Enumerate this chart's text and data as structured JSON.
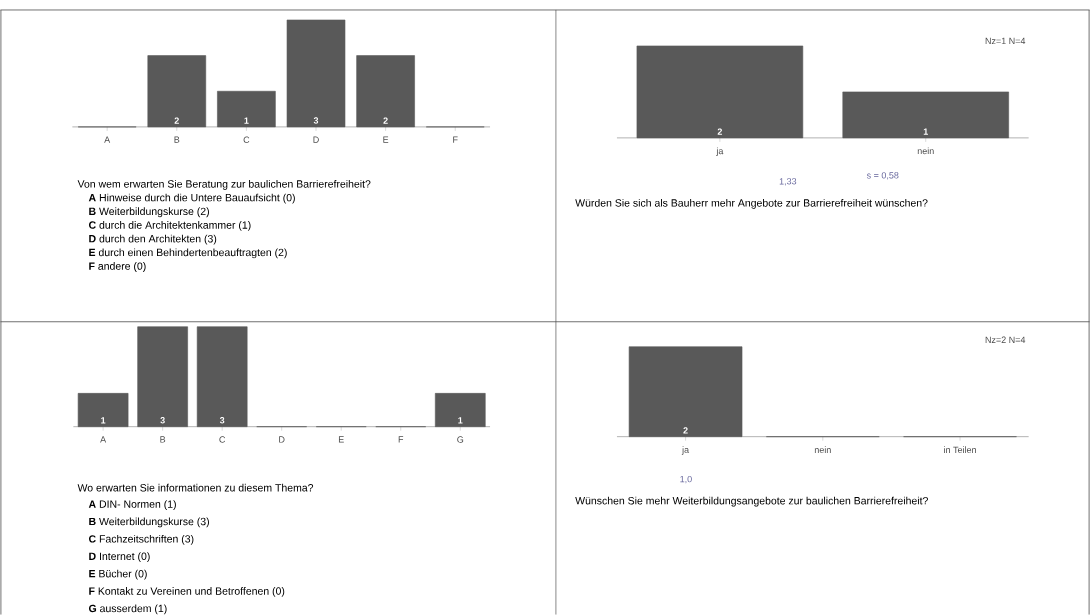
{
  "chart_data": [
    {
      "type": "bar",
      "title": "Von wem erwarten Sie Beratung zur baulichen Barrierefreiheit?",
      "categories": [
        "A",
        "B",
        "C",
        "D",
        "E",
        "F"
      ],
      "values": [
        0,
        2,
        1,
        3,
        2,
        0
      ],
      "value_labels": [
        null,
        "2",
        "1",
        "3",
        "2",
        null
      ],
      "color": "#595959",
      "annotations": [
        "**A** Hinweise durch die Untere Bauaufsicht (0)",
        "**B** Weiterbildungskurse (2)",
        "**C** durch die Architektenkammer (1)",
        "**D** durch den Architekten (3)",
        "**E** durch einen Behindertenbeauftragten (2)",
        "**F** andere (0)"
      ]
    },
    {
      "type": "bar",
      "title": "Würden Sie sich als Bauherr mehr Angebote zur Barrierefreiheit wünschen?",
      "categories": [
        "ja",
        "nein"
      ],
      "values": [
        2,
        1
      ],
      "value_labels": [
        "2",
        "1"
      ],
      "color": "#595959",
      "annotations": [
        "Nz=1   N=4",
        "1,33",
        "s = 0,58"
      ]
    },
    {
      "type": "bar",
      "title": "Wo erwarten Sie informationen zu diesem Thema?",
      "categories": [
        "A",
        "B",
        "C",
        "D",
        "E",
        "F",
        "G"
      ],
      "values": [
        1,
        3,
        3,
        0,
        0,
        0,
        1
      ],
      "value_labels": [
        "1",
        "3",
        "3",
        null,
        null,
        null,
        "1"
      ],
      "color": "#595959",
      "annotations": [
        "**A** DIN- Normen (1)",
        "**B** Weiterbildungskurse (3)",
        "**C** Fachzeitschriften (3)",
        "**D** Internet (0)",
        "**E** Bücher (0)",
        "**F** Kontakt zu Vereinen und Betroffenen (0)",
        "**G** ausserdem (1)"
      ]
    },
    {
      "type": "bar",
      "title": "Wünschen Sie mehr Weiterbildungsangebote zur baulichen Barrierefreiheit?",
      "categories": [
        "ja",
        "nein",
        "in Teilen"
      ],
      "values": [
        2,
        0,
        0
      ],
      "value_labels": [
        "2",
        null,
        null
      ],
      "color": "#595959",
      "annotations": [
        "Nz=2   N=4",
        "1,0"
      ]
    }
  ]
}
